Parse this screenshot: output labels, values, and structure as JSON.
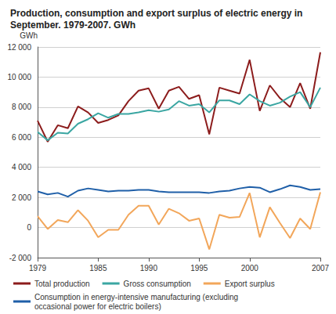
{
  "chart_data": {
    "type": "line",
    "title": "Production, consumption and export surplus of electric energy in September. 1979-2007. GWh",
    "ylabel": "GWh",
    "x": [
      1979,
      1980,
      1981,
      1982,
      1983,
      1984,
      1985,
      1986,
      1987,
      1988,
      1989,
      1990,
      1991,
      1992,
      1993,
      1994,
      1995,
      1996,
      1997,
      1998,
      1999,
      2000,
      2001,
      2002,
      2003,
      2004,
      2005,
      2006,
      2007
    ],
    "xlim": [
      1979,
      2007
    ],
    "xticks": [
      1979,
      1985,
      1990,
      1995,
      2000,
      2007
    ],
    "ylim": [
      -2000,
      12000
    ],
    "yticks": [
      {
        "value": -2000,
        "label": "-2 000"
      },
      0,
      {
        "value": 2000,
        "label": "2 000"
      },
      {
        "value": 4000,
        "label": "4 000"
      },
      {
        "value": 6000,
        "label": "6 000"
      },
      {
        "value": 8000,
        "label": "8 000"
      },
      {
        "value": 10000,
        "label": "10 000"
      },
      {
        "value": 12000,
        "label": "12 000"
      }
    ],
    "grid": true,
    "legend": "bottom",
    "series": [
      {
        "name": "Total production",
        "color": "#8c1c1c",
        "values": [
          7100,
          5700,
          6800,
          6600,
          8050,
          7650,
          6950,
          7150,
          7450,
          8400,
          9100,
          9250,
          7900,
          9100,
          9350,
          8550,
          8800,
          6200,
          9300,
          9100,
          8900,
          11150,
          7750,
          9450,
          8600,
          8000,
          9600,
          7900,
          11650
        ]
      },
      {
        "name": "Gross consumption",
        "color": "#3aa6a2",
        "values": [
          6350,
          5800,
          6300,
          6250,
          6900,
          7200,
          7600,
          7300,
          7550,
          7550,
          7650,
          7800,
          7700,
          7850,
          8400,
          8100,
          8200,
          7650,
          8450,
          8450,
          8200,
          8850,
          8400,
          8100,
          8300,
          8700,
          9000,
          8000,
          9300
        ]
      },
      {
        "name": "Export surplus",
        "color": "#f2a65a",
        "values": [
          750,
          -100,
          500,
          350,
          1150,
          450,
          -650,
          -150,
          -150,
          850,
          1450,
          1450,
          200,
          1250,
          950,
          450,
          600,
          -1450,
          850,
          650,
          700,
          2300,
          -650,
          1350,
          300,
          -700,
          600,
          -100,
          2350
        ]
      },
      {
        "name": "Consumption in energy-intensive manufacturing (excluding occasional power for electric boilers)",
        "color": "#1f5fa8",
        "values": [
          2400,
          2200,
          2300,
          2050,
          2450,
          2600,
          2500,
          2400,
          2450,
          2450,
          2500,
          2500,
          2400,
          2350,
          2350,
          2350,
          2350,
          2300,
          2400,
          2450,
          2600,
          2700,
          2650,
          2350,
          2550,
          2800,
          2700,
          2500,
          2550
        ]
      }
    ]
  }
}
